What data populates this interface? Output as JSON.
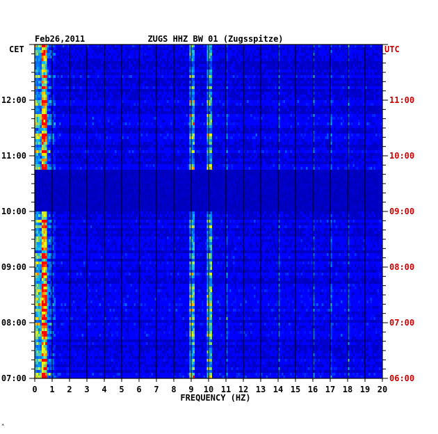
{
  "chart_data": {
    "type": "heatmap",
    "date": "Feb26,2011",
    "title": "ZUGS HHZ BW 01 (Zugsspitze)",
    "xlabel": "FREQUENCY (HZ)",
    "xlim": [
      0,
      20
    ],
    "x_ticks": [
      "0",
      "1",
      "2",
      "3",
      "4",
      "5",
      "6",
      "7",
      "8",
      "9",
      "10",
      "11",
      "12",
      "13",
      "14",
      "15",
      "16",
      "17",
      "18",
      "19",
      "20"
    ],
    "left_axis_label": "CET",
    "right_axis_label": "UTC",
    "left_ticks": [
      "12:00",
      "11:00",
      "10:00",
      "09:00",
      "08:00",
      "07:00"
    ],
    "right_ticks": [
      "11:00",
      "10:00",
      "09:00",
      "08:00",
      "07:00",
      "06:00"
    ],
    "time_range_cet": [
      "07:00",
      "12:45"
    ],
    "quiet_interval_cet": [
      "10:00",
      "10:45"
    ],
    "highlight_color": "#cc0000",
    "colormap": [
      "#00008c",
      "#0000ff",
      "#00b4ff",
      "#ffff00",
      "#ff0000"
    ],
    "strong_lines_hz": [
      0.5,
      9.0,
      10.0
    ],
    "weak_lines_hz": [
      11.0,
      14.0,
      16.0,
      17.0,
      18.0
    ],
    "grid": true
  }
}
